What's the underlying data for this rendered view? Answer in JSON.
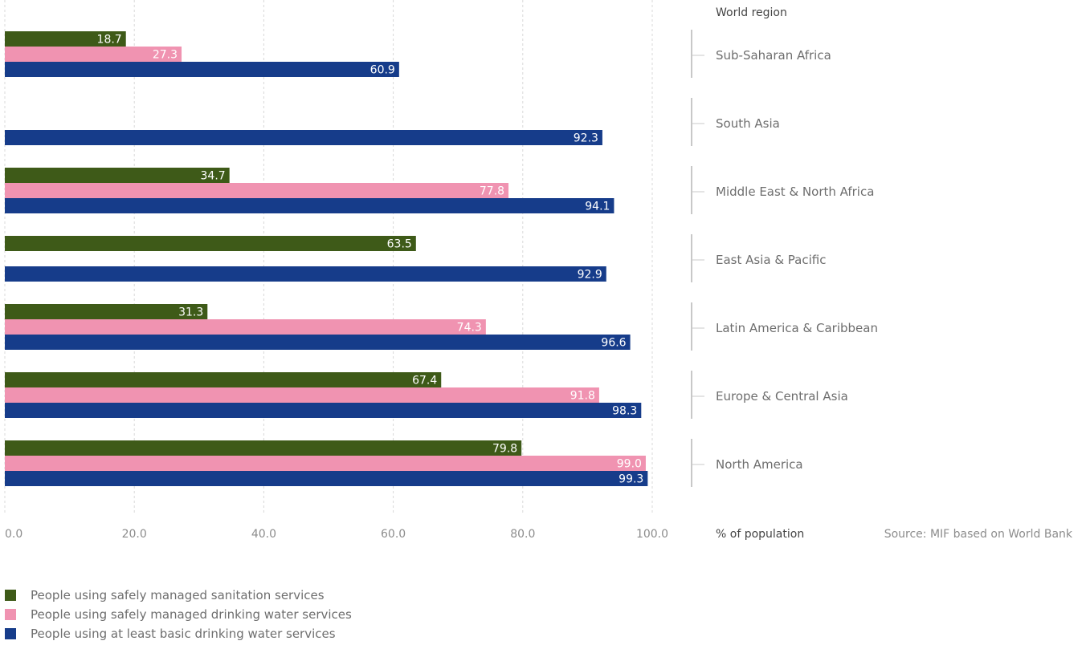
{
  "chart_data": {
    "type": "bar",
    "orientation": "horizontal",
    "categories": [
      "Sub-Saharan Africa",
      "South Asia",
      "Middle East & North Africa",
      "East Asia & Pacific",
      "Latin America & Caribbean",
      "Europe & Central Asia",
      "North America"
    ],
    "series": [
      {
        "name": "People using safely managed sanitation services",
        "color": "#3e5a18",
        "values": [
          18.7,
          null,
          34.7,
          63.5,
          31.3,
          67.4,
          79.8
        ],
        "labels": [
          "18.7",
          "",
          "34.7",
          "63.5",
          "31.3",
          "67.4",
          "79.8"
        ]
      },
      {
        "name": "People using safely managed drinking water services",
        "color": "#f093b1",
        "values": [
          27.3,
          null,
          77.8,
          null,
          74.3,
          91.8,
          99.0
        ],
        "labels": [
          "27.3",
          "",
          "77.8",
          "",
          "74.3",
          "91.8",
          "99.0"
        ]
      },
      {
        "name": "People using at least basic drinking water services",
        "color": "#163c8a",
        "values": [
          60.9,
          92.3,
          94.1,
          92.9,
          96.6,
          98.3,
          99.3
        ],
        "labels": [
          "60.9",
          "92.3",
          "94.1",
          "92.9",
          "96.6",
          "98.3",
          "99.3"
        ]
      }
    ],
    "xlim": [
      0,
      100
    ],
    "xticks": [
      0,
      20,
      40,
      60,
      80,
      100
    ],
    "xtick_labels": [
      "0.0",
      "20.0",
      "40.0",
      "60.0",
      "80.0",
      "100.0"
    ],
    "xlabel": "% of population",
    "category_axis_title": "World region",
    "source": "Source: MIF based on World Bank",
    "grid": "vertical dashed",
    "legend_position": "bottom-left"
  }
}
